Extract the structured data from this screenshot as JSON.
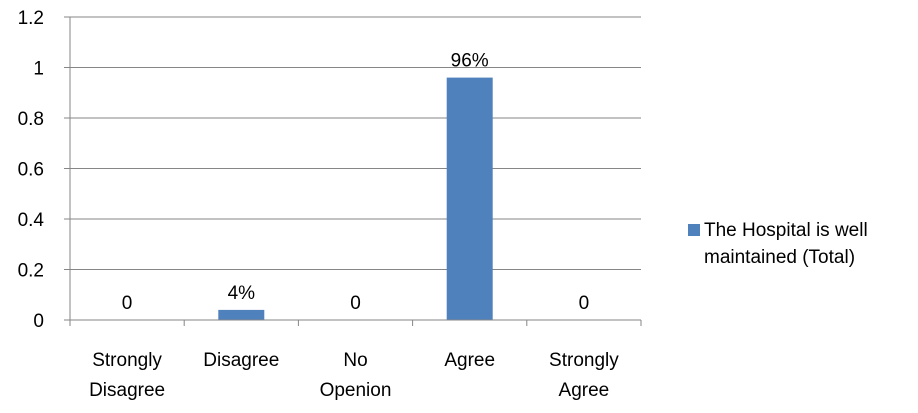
{
  "chart_data": {
    "type": "bar",
    "categories": [
      [
        "Strongly",
        "Disagree"
      ],
      [
        "Disagree"
      ],
      [
        "No",
        "Openion"
      ],
      [
        "Agree"
      ],
      [
        "Strongly",
        "Agree"
      ]
    ],
    "series": [
      {
        "name": "The Hospital is well maintained (Total)",
        "legend_lines": [
          "The Hospital is well",
          "maintained (Total)"
        ],
        "values": [
          0,
          0.04,
          0,
          0.96,
          0
        ],
        "data_labels": [
          "0",
          "4%",
          "0",
          "96%",
          "0"
        ],
        "color": "#4f81bd"
      }
    ],
    "ylim": [
      0,
      1.2
    ],
    "yticks": [
      "0",
      "0.2",
      "0.4",
      "0.6",
      "0.8",
      "1",
      "1.2"
    ],
    "grid": true,
    "legend_position": "right",
    "colors": {
      "gridline": "#868686",
      "axis": "#868686"
    }
  }
}
